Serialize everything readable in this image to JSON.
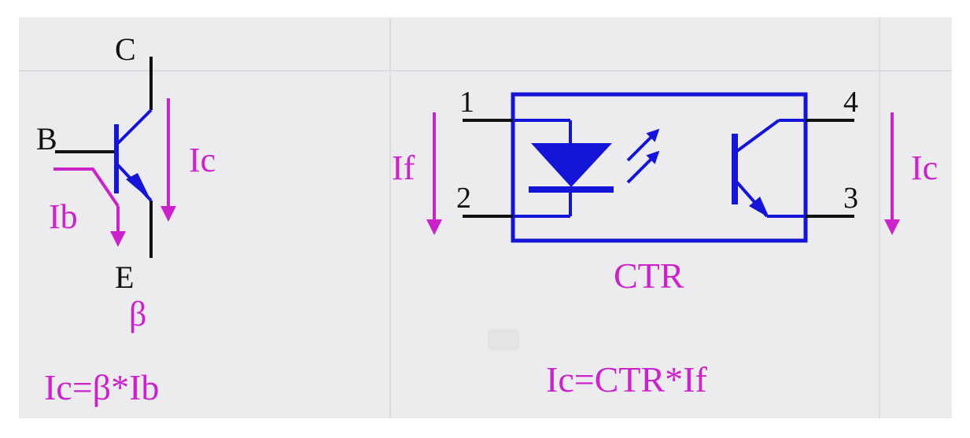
{
  "colors": {
    "panel": "#ecebed",
    "grid": "#d9d8dc",
    "black": "#111111",
    "blue": "#1515d8",
    "magenta": "#cc22cc"
  },
  "bjt": {
    "terminal_c": "C",
    "terminal_b": "B",
    "terminal_e": "E",
    "current_c": "Ic",
    "current_b": "Ib",
    "gain": "β",
    "formula": "Ic=β*Ib"
  },
  "optocoupler": {
    "pin_1": "1",
    "pin_2": "2",
    "pin_3": "3",
    "pin_4": "4",
    "current_f": "If",
    "current_c": "Ic",
    "ratio": "CTR",
    "formula": "Ic=CTR*If"
  }
}
